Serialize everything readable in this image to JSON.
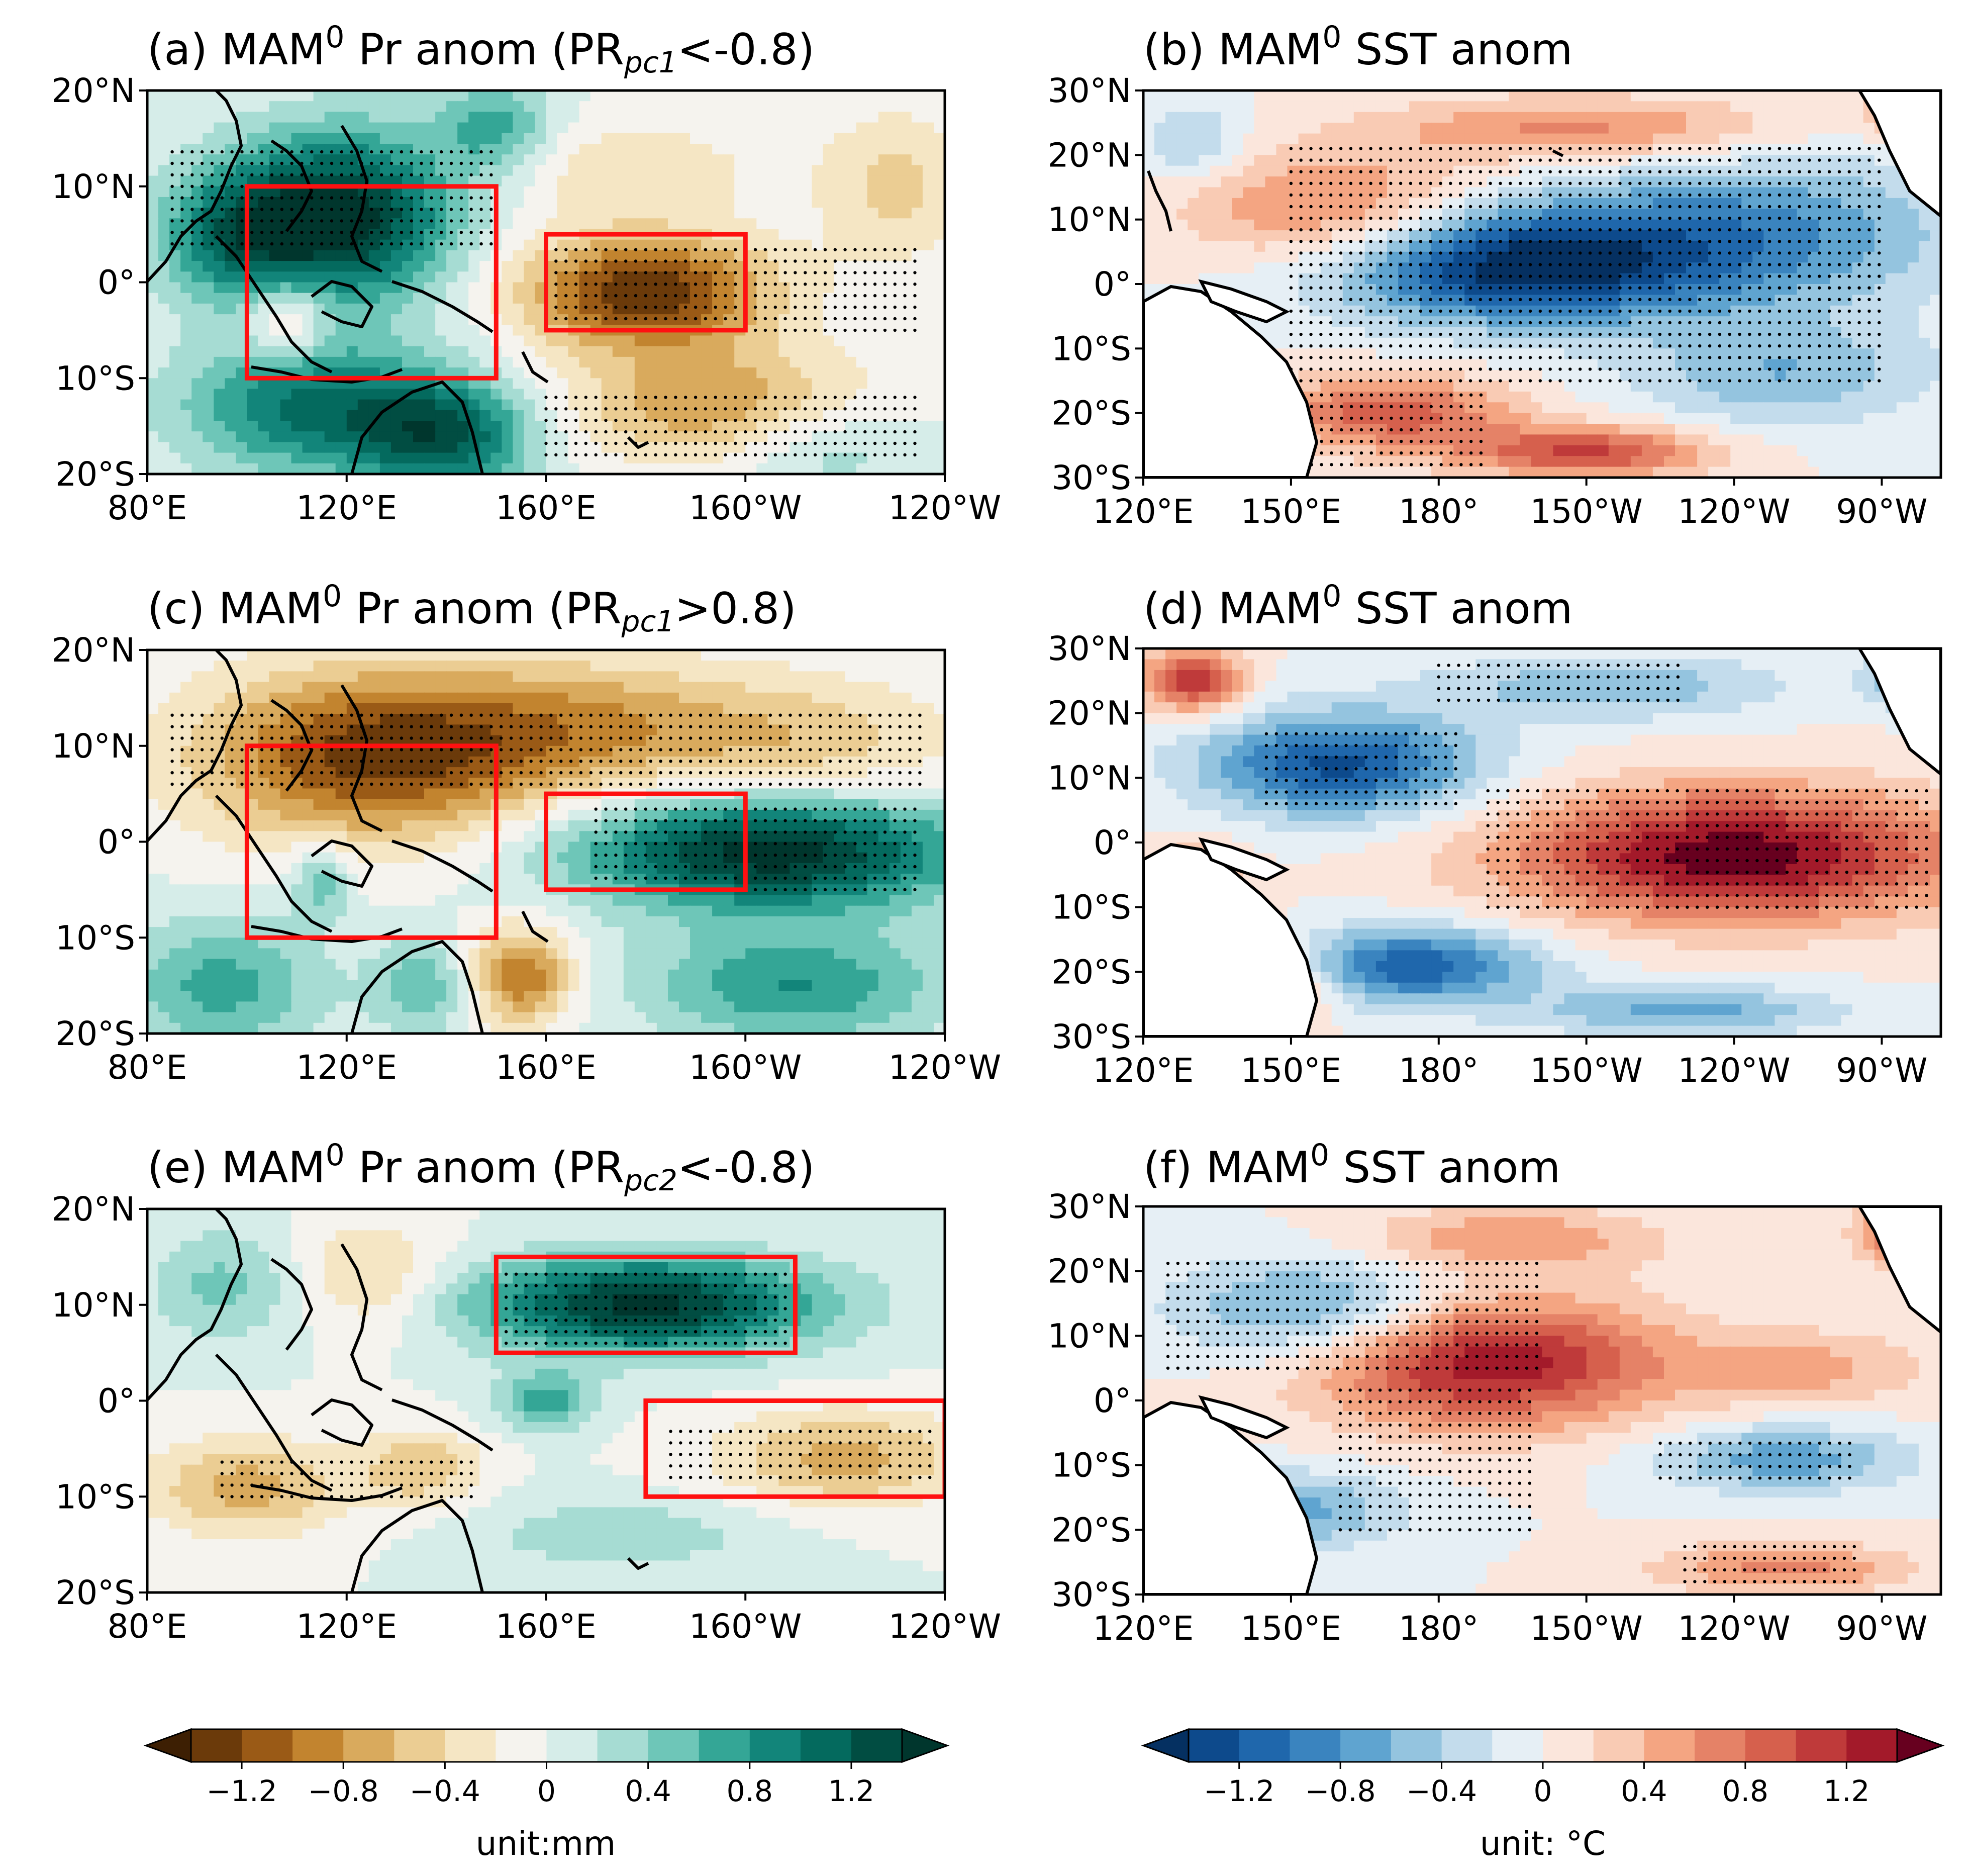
{
  "chart_data": [
    {
      "type": "heatmap",
      "panel": "a",
      "title_prefix": "(a) MAM",
      "title_sup": "0",
      "title_mid": " Pr anom (PR",
      "title_sub": "pc1",
      "title_suffix": "<-0.8)",
      "field": "Pr",
      "xticks": [
        "80°E",
        "120°E",
        "160°E",
        "160°W",
        "120°W"
      ],
      "yticks": [
        "20°N",
        "10°N",
        "0°",
        "10°S",
        "20°S"
      ],
      "lon_range": [
        80,
        240
      ],
      "lat_range": [
        -20,
        20
      ],
      "boxes": [
        {
          "lon": [
            100,
            150
          ],
          "lat": [
            -10,
            10
          ]
        },
        {
          "lon": [
            160,
            200
          ],
          "lat": [
            -5,
            5
          ]
        }
      ],
      "anomalies": [
        {
          "lon": 120,
          "lat": 7,
          "sx": 22,
          "sy": 9,
          "amp": 1.3
        },
        {
          "lon": 98,
          "lat": 5,
          "sx": 16,
          "sy": 7,
          "amp": 0.8
        },
        {
          "lon": 112,
          "lat": -13,
          "sx": 25,
          "sy": 7,
          "amp": 0.9
        },
        {
          "lon": 140,
          "lat": -16,
          "sx": 18,
          "sy": 6,
          "amp": 1.0
        },
        {
          "lon": 108,
          "lat": -4,
          "sx": 8,
          "sy": 4,
          "amp": -0.6
        },
        {
          "lon": 180,
          "lat": -1,
          "sx": 25,
          "sy": 6,
          "amp": -1.2
        },
        {
          "lon": 195,
          "lat": -13,
          "sx": 30,
          "sy": 6,
          "amp": -0.7
        },
        {
          "lon": 175,
          "lat": 12,
          "sx": 30,
          "sy": 5,
          "amp": -0.3
        },
        {
          "lon": 230,
          "lat": 10,
          "sx": 15,
          "sy": 8,
          "amp": -0.4
        },
        {
          "lon": 215,
          "lat": -17,
          "sx": 20,
          "sy": 5,
          "amp": 0.4
        },
        {
          "lon": 150,
          "lat": 16,
          "sx": 12,
          "sy": 5,
          "amp": 0.6
        }
      ],
      "stipple": [
        {
          "lon": [
            85,
            150
          ],
          "lat": [
            4,
            14
          ]
        },
        {
          "lon": [
            160,
            235
          ],
          "lat": [
            -5,
            4
          ]
        },
        {
          "lon": [
            160,
            235
          ],
          "lat": [
            -18,
            -12
          ]
        }
      ]
    },
    {
      "type": "heatmap",
      "panel": "b",
      "title_prefix": "(b) MAM",
      "title_sup": "0",
      "title_mid": " SST anom",
      "title_sub": "",
      "title_suffix": "",
      "field": "SST",
      "xticks": [
        "120°E",
        "150°E",
        "180°",
        "150°W",
        "120°W",
        "90°W"
      ],
      "yticks": [
        "30°N",
        "20°N",
        "10°N",
        "0°",
        "10°S",
        "20°S",
        "30°S"
      ],
      "lon_range": [
        120,
        282
      ],
      "lat_range": [
        -30,
        30
      ],
      "boxes": [],
      "anomalies": [
        {
          "lon": 195,
          "lat": 3,
          "sx": 38,
          "sy": 9,
          "amp": -1.35
        },
        {
          "lon": 245,
          "lat": 8,
          "sx": 40,
          "sy": 12,
          "amp": -0.7
        },
        {
          "lon": 250,
          "lat": -14,
          "sx": 30,
          "sy": 8,
          "amp": -0.5
        },
        {
          "lon": 160,
          "lat": 11,
          "sx": 30,
          "sy": 9,
          "amp": 0.7
        },
        {
          "lon": 210,
          "lat": 24,
          "sx": 40,
          "sy": 5,
          "amp": 0.6
        },
        {
          "lon": 170,
          "lat": -20,
          "sx": 25,
          "sy": 6,
          "amp": 0.8
        },
        {
          "lon": 210,
          "lat": -26,
          "sx": 25,
          "sy": 4,
          "amp": 0.9
        },
        {
          "lon": 130,
          "lat": 22,
          "sx": 10,
          "sy": 6,
          "amp": -0.4
        },
        {
          "lon": 275,
          "lat": 27,
          "sx": 8,
          "sy": 4,
          "amp": 0.6
        }
      ],
      "stipple": [
        {
          "lon": [
            150,
            270
          ],
          "lat": [
            -15,
            22
          ]
        },
        {
          "lon": [
            140,
            190
          ],
          "lat": [
            -28,
            -16
          ]
        }
      ]
    },
    {
      "type": "heatmap",
      "panel": "c",
      "title_prefix": "(c) MAM",
      "title_sup": "0",
      "title_mid": " Pr anom (PR",
      "title_sub": "pc1",
      "title_suffix": ">0.8)",
      "field": "Pr",
      "xticks": [
        "80°E",
        "120°E",
        "160°E",
        "160°W",
        "120°W"
      ],
      "yticks": [
        "20°N",
        "10°N",
        "0°",
        "10°S",
        "20°S"
      ],
      "lon_range": [
        80,
        240
      ],
      "lat_range": [
        -20,
        20
      ],
      "boxes": [
        {
          "lon": [
            100,
            150
          ],
          "lat": [
            -10,
            10
          ]
        },
        {
          "lon": [
            160,
            200
          ],
          "lat": [
            -5,
            5
          ]
        }
      ],
      "anomalies": [
        {
          "lon": 125,
          "lat": 9,
          "sx": 35,
          "sy": 9,
          "amp": -1.1
        },
        {
          "lon": 170,
          "lat": 12,
          "sx": 35,
          "sy": 7,
          "amp": -0.6
        },
        {
          "lon": 215,
          "lat": 10,
          "sx": 30,
          "sy": 7,
          "amp": -0.4
        },
        {
          "lon": 155,
          "lat": -14,
          "sx": 10,
          "sy": 5,
          "amp": -0.9
        },
        {
          "lon": 205,
          "lat": -1,
          "sx": 40,
          "sy": 6,
          "amp": 1.35
        },
        {
          "lon": 210,
          "lat": -15,
          "sx": 30,
          "sy": 6,
          "amp": 0.7
        },
        {
          "lon": 95,
          "lat": -15,
          "sx": 20,
          "sy": 7,
          "amp": 0.6
        },
        {
          "lon": 135,
          "lat": -15,
          "sx": 10,
          "sy": 5,
          "amp": 0.5
        },
        {
          "lon": 115,
          "lat": -4,
          "sx": 6,
          "sy": 4,
          "amp": 0.5
        }
      ],
      "stipple": [
        {
          "lon": [
            85,
            235
          ],
          "lat": [
            6,
            14
          ]
        },
        {
          "lon": [
            170,
            235
          ],
          "lat": [
            -5,
            4
          ]
        }
      ]
    },
    {
      "type": "heatmap",
      "panel": "d",
      "title_prefix": "(d) MAM",
      "title_sup": "0",
      "title_mid": " SST anom",
      "title_sub": "",
      "title_suffix": "",
      "field": "SST",
      "xticks": [
        "120°E",
        "150°E",
        "180°",
        "150°W",
        "120°W",
        "90°W"
      ],
      "yticks": [
        "30°N",
        "20°N",
        "10°N",
        "0°",
        "10°S",
        "20°S",
        "30°S"
      ],
      "lon_range": [
        120,
        282
      ],
      "lat_range": [
        -30,
        30
      ],
      "boxes": [],
      "anomalies": [
        {
          "lon": 240,
          "lat": -2,
          "sx": 45,
          "sy": 10,
          "amp": 1.35
        },
        {
          "lon": 160,
          "lat": 12,
          "sx": 28,
          "sy": 8,
          "amp": -1.1
        },
        {
          "lon": 175,
          "lat": -19,
          "sx": 25,
          "sy": 6,
          "amp": -1.0
        },
        {
          "lon": 230,
          "lat": -26,
          "sx": 30,
          "sy": 4,
          "amp": -0.6
        },
        {
          "lon": 215,
          "lat": 24,
          "sx": 35,
          "sy": 5,
          "amp": -0.5
        },
        {
          "lon": 130,
          "lat": 25,
          "sx": 10,
          "sy": 5,
          "amp": 1.0
        },
        {
          "lon": 130,
          "lat": -10,
          "sx": 10,
          "sy": 8,
          "amp": 0.8
        },
        {
          "lon": 150,
          "lat": -22,
          "sx": 10,
          "sy": 6,
          "amp": 0.5
        },
        {
          "lon": 275,
          "lat": 25,
          "sx": 8,
          "sy": 4,
          "amp": -0.6
        }
      ],
      "stipple": [
        {
          "lon": [
            190,
            280
          ],
          "lat": [
            -10,
            8
          ]
        },
        {
          "lon": [
            145,
            185
          ],
          "lat": [
            6,
            17
          ]
        },
        {
          "lon": [
            180,
            230
          ],
          "lat": [
            22,
            28
          ]
        }
      ]
    },
    {
      "type": "heatmap",
      "panel": "e",
      "title_prefix": "(e) MAM",
      "title_sup": "0",
      "title_mid": " Pr anom (PR",
      "title_sub": "pc2",
      "title_suffix": "<-0.8)",
      "field": "Pr",
      "xticks": [
        "80°E",
        "120°E",
        "160°E",
        "160°W",
        "120°W"
      ],
      "yticks": [
        "20°N",
        "10°N",
        "0°",
        "10°S",
        "20°S"
      ],
      "lon_range": [
        80,
        240
      ],
      "lat_range": [
        -20,
        20
      ],
      "boxes": [
        {
          "lon": [
            150,
            210
          ],
          "lat": [
            5,
            15
          ]
        },
        {
          "lon": [
            180,
            240
          ],
          "lat": [
            -10,
            0
          ]
        }
      ],
      "anomalies": [
        {
          "lon": 180,
          "lat": 10,
          "sx": 35,
          "sy": 5,
          "amp": 1.3
        },
        {
          "lon": 160,
          "lat": 0,
          "sx": 10,
          "sy": 3,
          "amp": 0.6
        },
        {
          "lon": 100,
          "lat": -9,
          "sx": 20,
          "sy": 5,
          "amp": -0.6
        },
        {
          "lon": 135,
          "lat": -7,
          "sx": 12,
          "sy": 4,
          "amp": -0.5
        },
        {
          "lon": 220,
          "lat": -6,
          "sx": 25,
          "sy": 5,
          "amp": -0.6
        },
        {
          "lon": 125,
          "lat": 13,
          "sx": 15,
          "sy": 6,
          "amp": -0.4
        },
        {
          "lon": 95,
          "lat": 12,
          "sx": 15,
          "sy": 6,
          "amp": 0.4
        },
        {
          "lon": 175,
          "lat": -14,
          "sx": 30,
          "sy": 4,
          "amp": 0.3
        }
      ],
      "stipple": [
        {
          "lon": [
            150,
            210
          ],
          "lat": [
            6,
            14
          ]
        },
        {
          "lon": [
            185,
            238
          ],
          "lat": [
            -8,
            -2
          ]
        },
        {
          "lon": [
            95,
            145
          ],
          "lat": [
            -10,
            -6
          ]
        }
      ]
    },
    {
      "type": "heatmap",
      "panel": "f",
      "title_prefix": "(f) MAM",
      "title_sup": "0",
      "title_mid": " SST anom",
      "title_sub": "",
      "title_suffix": "",
      "field": "SST",
      "xticks": [
        "120°E",
        "150°E",
        "180°",
        "150°W",
        "120°W",
        "90°W"
      ],
      "yticks": [
        "30°N",
        "20°N",
        "10°N",
        "0°",
        "10°S",
        "20°S",
        "30°S"
      ],
      "lon_range": [
        120,
        282
      ],
      "lat_range": [
        -30,
        30
      ],
      "boxes": [],
      "anomalies": [
        {
          "lon": 190,
          "lat": 6,
          "sx": 35,
          "sy": 10,
          "amp": 1.2
        },
        {
          "lon": 250,
          "lat": -9,
          "sx": 25,
          "sy": 5,
          "amp": -0.65
        },
        {
          "lon": 155,
          "lat": 14,
          "sx": 28,
          "sy": 8,
          "amp": -0.7
        },
        {
          "lon": 150,
          "lat": -17,
          "sx": 22,
          "sy": 6,
          "amp": -0.6
        },
        {
          "lon": 250,
          "lat": -26,
          "sx": 25,
          "sy": 4,
          "amp": 0.6
        },
        {
          "lon": 275,
          "lat": 26,
          "sx": 10,
          "sy": 5,
          "amp": 0.8
        },
        {
          "lon": 195,
          "lat": 25,
          "sx": 30,
          "sy": 5,
          "amp": 0.5
        },
        {
          "lon": 255,
          "lat": 5,
          "sx": 25,
          "sy": 6,
          "amp": 0.4
        }
      ],
      "stipple": [
        {
          "lon": [
            125,
            200
          ],
          "lat": [
            5,
            22
          ]
        },
        {
          "lon": [
            160,
            200
          ],
          "lat": [
            -20,
            2
          ]
        },
        {
          "lon": [
            225,
            265
          ],
          "lat": [
            -12,
            -6
          ]
        },
        {
          "lon": [
            230,
            265
          ],
          "lat": [
            -28,
            -22
          ]
        }
      ]
    }
  ],
  "colorbars": {
    "pr": {
      "ticks": [
        "−1.2",
        "−0.8",
        "−0.4",
        "0",
        "0.4",
        "0.8",
        "1.2"
      ],
      "tick_values": [
        -1.2,
        -0.8,
        -0.4,
        0,
        0.4,
        0.8,
        1.2
      ],
      "label": "unit:mm",
      "colors": [
        "#3d1f03",
        "#6b3a0a",
        "#9a5a16",
        "#c2842f",
        "#d9aa5d",
        "#ebcd93",
        "#f5e6c4",
        "#f5f3ee",
        "#d6ede9",
        "#a6dcd3",
        "#6ec6b8",
        "#34a696",
        "#12857a",
        "#046a5e",
        "#014d42",
        "#00362d"
      ]
    },
    "sst": {
      "ticks": [
        "−1.2",
        "−0.8",
        "−0.4",
        "0",
        "0.4",
        "0.8",
        "1.2"
      ],
      "tick_values": [
        -1.2,
        -0.8,
        -0.4,
        0,
        0.4,
        0.8,
        1.2
      ],
      "label": "unit: °C",
      "colors": [
        "#053061",
        "#0d4a8c",
        "#1f67ac",
        "#3a84bf",
        "#5fa4d0",
        "#94c4df",
        "#c3dcec",
        "#e6eff5",
        "#fbe6dc",
        "#f9cbb4",
        "#f4a582",
        "#e58267",
        "#d6604d",
        "#bf3a3a",
        "#a31a2a",
        "#67001f"
      ]
    }
  }
}
